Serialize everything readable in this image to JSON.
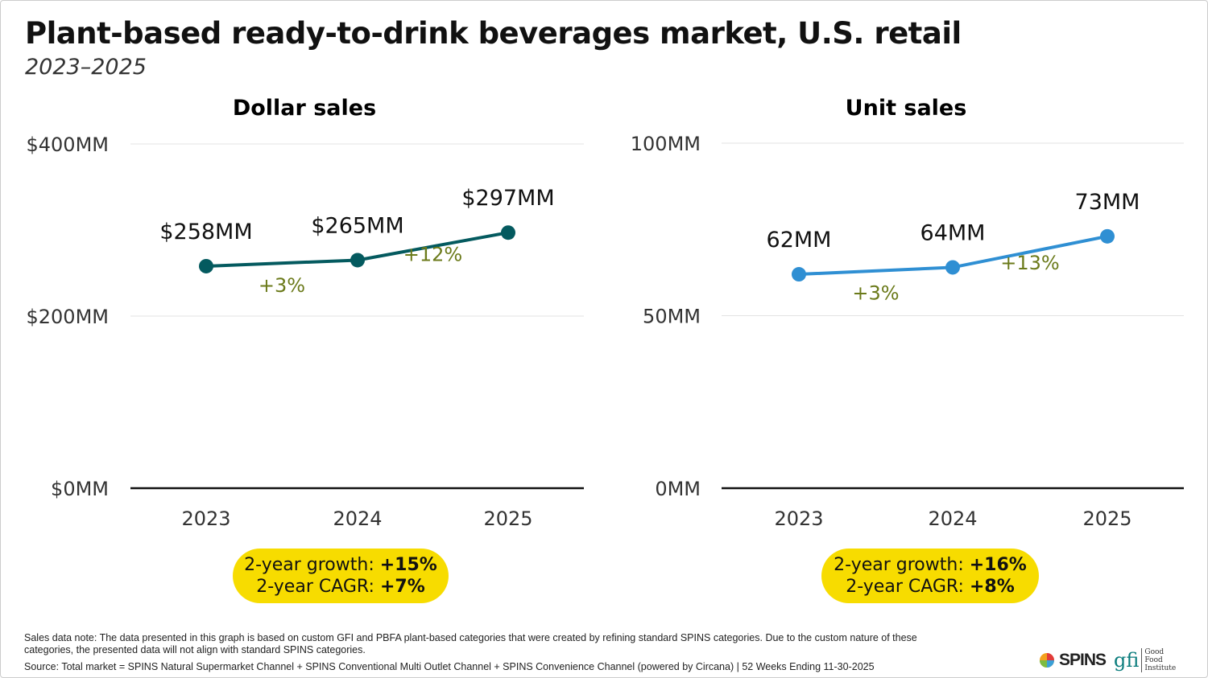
{
  "title": "Plant-based ready-to-drink beverages market, U.S. retail",
  "subtitle": "2023–2025",
  "colors": {
    "dollar_line": "#045a5f",
    "unit_line": "#2f8fd3",
    "growth_text": "#6b7a1a",
    "badge": "#f7dc00"
  },
  "chart_data": [
    {
      "type": "line",
      "title": "Dollar sales",
      "categories": [
        "2023",
        "2024",
        "2025"
      ],
      "values": [
        258,
        265,
        297
      ],
      "data_labels": [
        "$258MM",
        "$265MM",
        "$297MM"
      ],
      "growth_labels": [
        "+3%",
        "+12%"
      ],
      "ylim": [
        0,
        400
      ],
      "yticks": [
        0,
        200,
        400
      ],
      "ytick_labels": [
        "$0MM",
        "$200MM",
        "$400MM"
      ],
      "grid": true,
      "summary": {
        "growth_label": "2-year growth: ",
        "growth_value": "+15%",
        "cagr_label": "2-year CAGR: ",
        "cagr_value": "+7%"
      }
    },
    {
      "type": "line",
      "title": "Unit sales",
      "categories": [
        "2023",
        "2024",
        "2025"
      ],
      "values": [
        62,
        64,
        73
      ],
      "data_labels": [
        "62MM",
        "64MM",
        "73MM"
      ],
      "growth_labels": [
        "+3%",
        "+13%"
      ],
      "ylim": [
        0,
        100
      ],
      "yticks": [
        0,
        50,
        100
      ],
      "ytick_labels": [
        "0MM",
        "50MM",
        "100MM"
      ],
      "grid": true,
      "summary": {
        "growth_label": "2-year growth: ",
        "growth_value": "+16%",
        "cagr_label": "2-year CAGR: ",
        "cagr_value": "+8%"
      }
    }
  ],
  "footer": {
    "note": "Sales data note: The data presented in this graph is based on custom GFI and PBFA plant-based categories that were created by refining standard SPINS categories. Due to the custom nature of these categories, the presented data will not align with standard SPINS categories.",
    "source": "Source: Total market = SPINS Natural Supermarket Channel + SPINS Conventional Multi Outlet Channel + SPINS Convenience Channel (powered by Circana) | 52 Weeks Ending 11-30-2025"
  },
  "logos": {
    "spins": "SPINS",
    "gfi_mark": "gfi",
    "gfi_name": "Good Food Institute"
  }
}
